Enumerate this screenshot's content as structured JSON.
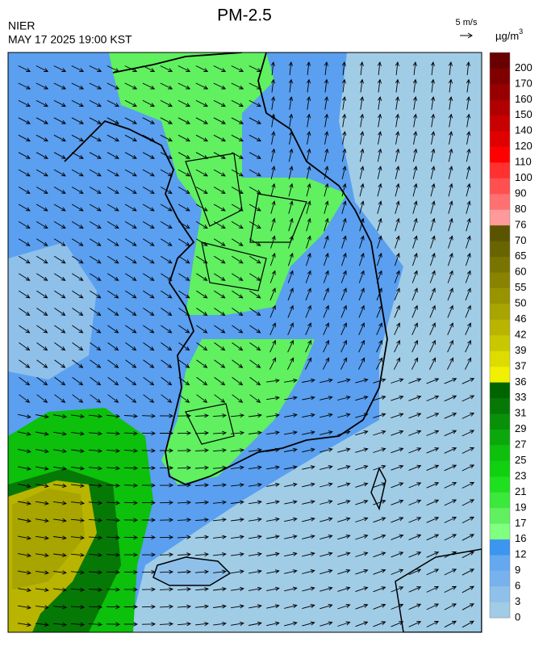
{
  "header": {
    "title": "PM-2.5",
    "agency": "NIER",
    "datetime": "MAY 17 2025 19:00 KST"
  },
  "wind_scale": {
    "label": "5 m/s"
  },
  "colorbar": {
    "unit": {
      "base": "µg/m",
      "sup": "3"
    },
    "ticks": [
      0,
      3,
      6,
      9,
      12,
      16,
      17,
      19,
      21,
      23,
      25,
      27,
      29,
      31,
      33,
      36,
      37,
      39,
      42,
      46,
      50,
      55,
      60,
      65,
      70,
      76,
      80,
      90,
      100,
      110,
      120,
      140,
      150,
      160,
      170,
      200
    ],
    "colors": [
      "#a0cce6",
      "#8ec0ea",
      "#78b2ee",
      "#64a8f0",
      "#3c96f0",
      "#80ff80",
      "#60f060",
      "#3ce83c",
      "#1ee01e",
      "#10d010",
      "#0cc00c",
      "#0aa80a",
      "#089008",
      "#067806",
      "#006400",
      "#f0f000",
      "#dcdc00",
      "#c8c800",
      "#b8b400",
      "#a8a400",
      "#989400",
      "#888400",
      "#787400",
      "#686400",
      "#5a5400",
      "#ff9a9a",
      "#ff7070",
      "#ff5050",
      "#ff3030",
      "#ff0000",
      "#e00000",
      "#c80000",
      "#b00000",
      "#980000",
      "#800000",
      "#680000"
    ]
  }
}
